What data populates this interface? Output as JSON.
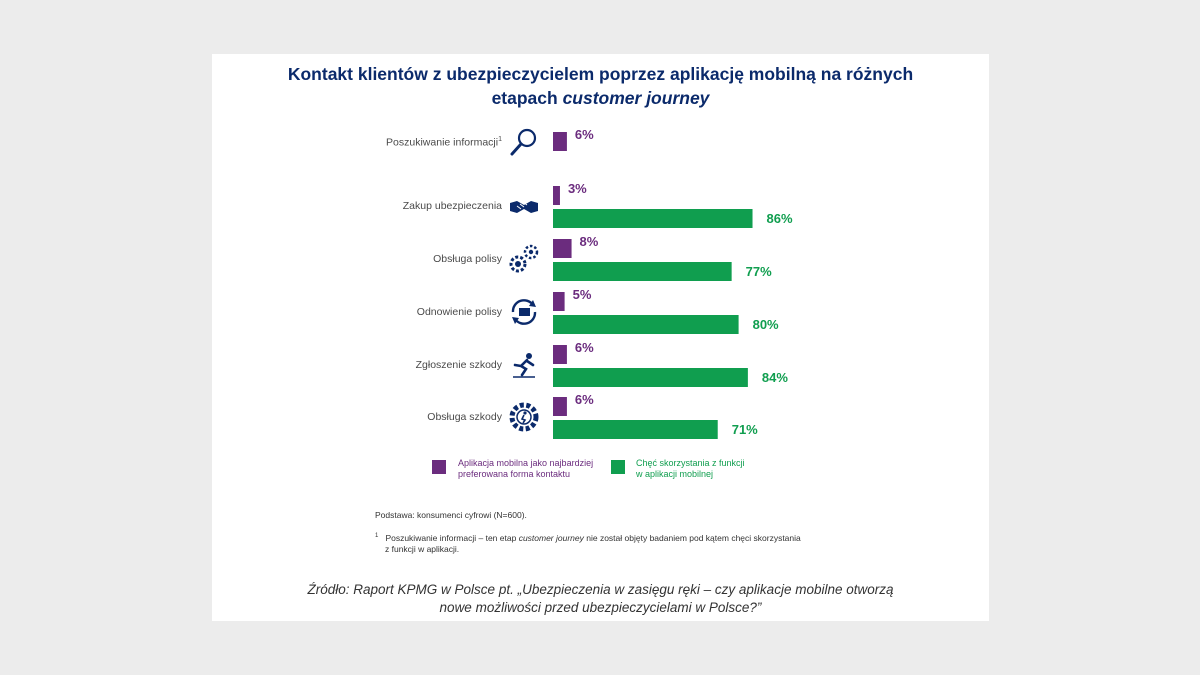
{
  "title": {
    "line1": "Kontakt klientów z ubezpieczycielem poprzez aplikację mobilną na różnych",
    "line2_prefix": "etapach ",
    "line2_italic": "customer journey"
  },
  "chart_data": {
    "type": "bar",
    "orientation": "horizontal",
    "categories": [
      {
        "label": "Poszukiwanie informacji",
        "footnote_mark": "1",
        "icon": "magnifier-icon"
      },
      {
        "label": "Zakup ubezpieczenia",
        "icon": "handshake-icon"
      },
      {
        "label": "Obsługa polisy",
        "icon": "gears-icon"
      },
      {
        "label": "Odnowienie polisy",
        "icon": "renewal-icon"
      },
      {
        "label": "Zgłoszenie szkody",
        "icon": "accident-icon"
      },
      {
        "label": "Obsługa szkody",
        "icon": "gear-person-icon"
      }
    ],
    "series": [
      {
        "name": "Aplikacja mobilna jako najbardziej preferowana forma kontaktu",
        "color": "#6b2c7e",
        "values": [
          6,
          3,
          8,
          5,
          6,
          6
        ]
      },
      {
        "name": "Chęć skorzystania z funkcji w aplikacji mobilnej",
        "color": "#109e4f",
        "values": [
          null,
          86,
          77,
          80,
          84,
          71
        ]
      }
    ],
    "value_suffix": "%"
  },
  "legend": {
    "purple_line1": "Aplikacja mobilna jako najbardziej",
    "purple_line2": "preferowana forma kontaktu",
    "green_line1": "Chęć skorzystania z funkcji",
    "green_line2": "w aplikacji mobilnej"
  },
  "notes": {
    "basis": "Podstawa: konsumenci cyfrowi (N=600).",
    "footnote_mark": "1",
    "footnote_pre": "Poszukiwanie informacji – ten etap ",
    "footnote_italic": "customer journey",
    "footnote_post": " nie został objęty badaniem pod kątem chęci skorzystania",
    "footnote_line2": "z funkcji w aplikacji."
  },
  "source": {
    "line1": "Źródło: Raport KPMG w Polsce pt. „Ubezpieczenia w zasięgu ręki – czy aplikacje mobilne otworzą",
    "line2": "nowe możliwości przed ubezpieczycielami w Polsce?”"
  }
}
